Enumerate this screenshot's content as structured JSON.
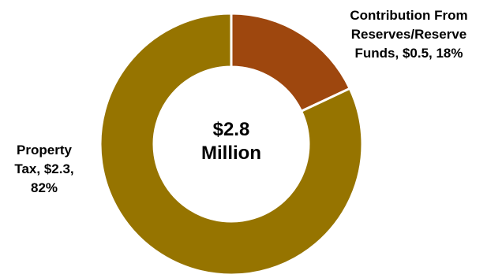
{
  "chart_data": {
    "type": "pie",
    "donut": true,
    "center_text": [
      "$2.8",
      "Million"
    ],
    "slices": [
      {
        "name": "Contribution From Reserves/Reserve Funds",
        "value": 0.5,
        "percent": 18,
        "color": "#9E470E",
        "label_lines": [
          "Contribution From",
          "Reserves/Reserve",
          "Funds, $0.5, 18%"
        ]
      },
      {
        "name": "Property Tax",
        "value": 2.3,
        "percent": 82,
        "color": "#967400",
        "label_lines": [
          "Property",
          "Tax, $2.3,",
          "82%"
        ]
      }
    ],
    "start_angle_deg": 0,
    "direction": "clockwise",
    "legend": "none"
  }
}
